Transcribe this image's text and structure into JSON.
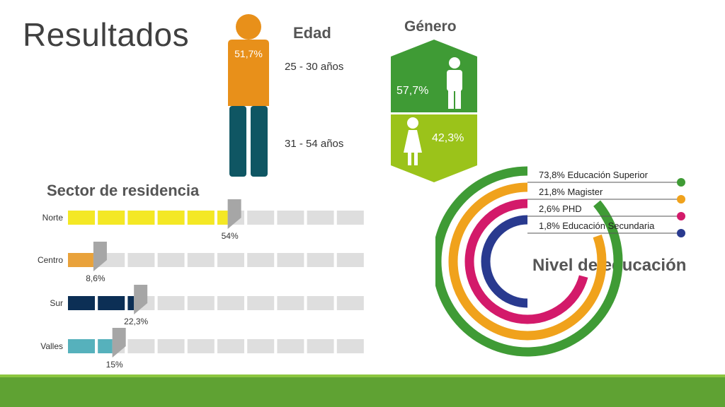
{
  "slide": {
    "title": "Resultados"
  },
  "colors": {
    "orange": "#e8901a",
    "teal": "#0f5663",
    "green_dark": "#3f9b35",
    "green_light": "#9bc31a",
    "yellow": "#f4e825",
    "orange_bar": "#e9a23b",
    "navy": "#0c2f55",
    "cyan": "#56b1bc",
    "gray_empty": "#dedede",
    "marker_gray": "#a6a6a6",
    "edu_green": "#3f9b35",
    "edu_orange": "#f0a21c",
    "edu_pink": "#d31a6a",
    "edu_navy": "#293a8f",
    "bottom_bar": "#5fa233"
  },
  "chart_data": [
    {
      "type": "pictograph",
      "title": "Edad",
      "series": [
        {
          "name": "25 - 30 años",
          "value": 51.7,
          "label": "51,7%"
        },
        {
          "name": "31 - 54 años",
          "value": 48.3
        }
      ]
    },
    {
      "type": "bar",
      "title": "Género",
      "series": [
        {
          "name": "male",
          "icon": "male-person-icon",
          "value": 57.7,
          "label": "57,7%"
        },
        {
          "name": "female",
          "icon": "female-person-icon",
          "value": 42.3,
          "label": "42,3%"
        }
      ]
    },
    {
      "type": "bar",
      "title": "Sector de residencia",
      "categories": [
        "Norte",
        "Centro",
        "Sur",
        "Valles"
      ],
      "values": [
        54,
        8.6,
        22.3,
        15
      ],
      "labels": [
        "54%",
        "8,6%",
        "22,3%",
        "15%"
      ],
      "segments": 10,
      "xlim": [
        0,
        100
      ]
    },
    {
      "type": "radial-bar",
      "title": "Nivel de educación",
      "series": [
        {
          "name": "Educación Superior",
          "value": 73.8,
          "label": "73,8% Educación Superior"
        },
        {
          "name": "Magister",
          "value": 21.8,
          "label": "21,8% Magister"
        },
        {
          "name": "PHD",
          "value": 2.6,
          "label": "2,6% PHD"
        },
        {
          "name": "Educación Secundaria",
          "value": 1.8,
          "label": "1,8% Educación Secundaria"
        }
      ]
    }
  ]
}
